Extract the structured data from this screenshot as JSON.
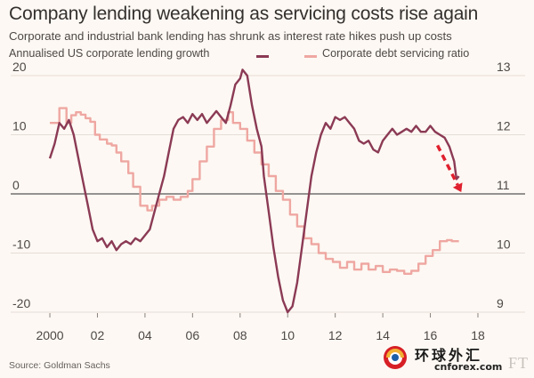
{
  "header": {
    "title": "Company lending weakening as servicing costs rise again",
    "subtitle": "Corporate and industrial bank lending has shrunk as interest rate hikes push up costs"
  },
  "footer": {
    "source": "Source: Goldman Sachs",
    "brand": "FT"
  },
  "watermark": {
    "cn_text": "环球外汇",
    "en_text": "cnforex.com"
  },
  "colors": {
    "background": "#fdf8f3",
    "lending": "#8b3a55",
    "debt_ratio": "#efa7a2",
    "arrow": "#e0202e",
    "zero_line": "#555555",
    "grid": "#e6ddd6"
  },
  "chart_data": {
    "type": "line",
    "title": "Company lending weakening as servicing costs rise again",
    "subtitle": "Corporate and industrial bank lending has shrunk as interest rate hikes push up costs",
    "x_ticks": [
      "2000",
      "02",
      "04",
      "06",
      "08",
      "10",
      "12",
      "14",
      "16",
      "18"
    ],
    "xlim": [
      1999.4,
      2018.3
    ],
    "y_left": {
      "ticks": [
        20,
        10,
        0,
        -10,
        -20
      ],
      "ylim": [
        -20,
        20
      ]
    },
    "y_right": {
      "ticks": [
        13,
        12,
        11,
        10,
        9
      ],
      "ylim": [
        9,
        13
      ]
    },
    "grid": true,
    "legend_position": "top",
    "series": [
      {
        "name": "Annualised US corporate lending growth",
        "axis": "left",
        "color": "#8b3a55",
        "points": [
          [
            2000.0,
            6.0
          ],
          [
            2000.2,
            8.5
          ],
          [
            2000.4,
            12.0
          ],
          [
            2000.6,
            11.0
          ],
          [
            2000.8,
            12.5
          ],
          [
            2001.0,
            10.0
          ],
          [
            2001.2,
            6.0
          ],
          [
            2001.4,
            2.0
          ],
          [
            2001.6,
            -2.0
          ],
          [
            2001.8,
            -6.0
          ],
          [
            2002.0,
            -8.0
          ],
          [
            2002.2,
            -7.5
          ],
          [
            2002.4,
            -9.0
          ],
          [
            2002.6,
            -8.0
          ],
          [
            2002.8,
            -9.5
          ],
          [
            2003.0,
            -8.5
          ],
          [
            2003.2,
            -8.0
          ],
          [
            2003.4,
            -8.5
          ],
          [
            2003.6,
            -7.5
          ],
          [
            2003.8,
            -8.0
          ],
          [
            2004.0,
            -7.0
          ],
          [
            2004.2,
            -6.0
          ],
          [
            2004.4,
            -3.0
          ],
          [
            2004.6,
            0.0
          ],
          [
            2004.8,
            3.0
          ],
          [
            2005.0,
            7.0
          ],
          [
            2005.2,
            11.0
          ],
          [
            2005.4,
            12.5
          ],
          [
            2005.6,
            13.0
          ],
          [
            2005.8,
            12.0
          ],
          [
            2006.0,
            13.5
          ],
          [
            2006.2,
            12.5
          ],
          [
            2006.4,
            13.5
          ],
          [
            2006.6,
            12.0
          ],
          [
            2006.8,
            13.0
          ],
          [
            2007.0,
            14.0
          ],
          [
            2007.2,
            13.0
          ],
          [
            2007.4,
            12.0
          ],
          [
            2007.6,
            15.0
          ],
          [
            2007.8,
            18.5
          ],
          [
            2008.0,
            19.5
          ],
          [
            2008.1,
            21.0
          ],
          [
            2008.3,
            20.0
          ],
          [
            2008.5,
            15.0
          ],
          [
            2008.7,
            11.0
          ],
          [
            2008.9,
            8.0
          ],
          [
            2009.0,
            3.0
          ],
          [
            2009.2,
            -3.0
          ],
          [
            2009.4,
            -9.0
          ],
          [
            2009.6,
            -14.0
          ],
          [
            2009.8,
            -18.0
          ],
          [
            2010.0,
            -20.0
          ],
          [
            2010.2,
            -19.0
          ],
          [
            2010.4,
            -15.0
          ],
          [
            2010.6,
            -9.0
          ],
          [
            2010.8,
            -3.0
          ],
          [
            2011.0,
            3.0
          ],
          [
            2011.2,
            7.0
          ],
          [
            2011.4,
            10.0
          ],
          [
            2011.6,
            12.0
          ],
          [
            2011.8,
            11.0
          ],
          [
            2012.0,
            13.0
          ],
          [
            2012.2,
            12.5
          ],
          [
            2012.4,
            13.0
          ],
          [
            2012.6,
            12.0
          ],
          [
            2012.8,
            11.0
          ],
          [
            2013.0,
            9.0
          ],
          [
            2013.2,
            8.5
          ],
          [
            2013.4,
            9.0
          ],
          [
            2013.6,
            7.5
          ],
          [
            2013.8,
            7.0
          ],
          [
            2014.0,
            9.0
          ],
          [
            2014.2,
            10.0
          ],
          [
            2014.4,
            11.0
          ],
          [
            2014.6,
            10.0
          ],
          [
            2014.8,
            10.5
          ],
          [
            2015.0,
            11.0
          ],
          [
            2015.2,
            10.5
          ],
          [
            2015.4,
            11.5
          ],
          [
            2015.6,
            10.5
          ],
          [
            2015.8,
            10.5
          ],
          [
            2016.0,
            11.5
          ],
          [
            2016.2,
            10.5
          ],
          [
            2016.4,
            10.0
          ],
          [
            2016.6,
            9.5
          ],
          [
            2016.8,
            8.0
          ],
          [
            2017.0,
            5.5
          ],
          [
            2017.1,
            2.5
          ],
          [
            2017.2,
            3.0
          ]
        ]
      },
      {
        "name": "Corporate debt servicing ratio",
        "axis": "right",
        "color": "#efa7a2",
        "points": [
          [
            2000.0,
            12.2
          ],
          [
            2000.4,
            12.2
          ],
          [
            2000.4,
            12.45
          ],
          [
            2000.7,
            12.45
          ],
          [
            2000.7,
            12.2
          ],
          [
            2000.9,
            12.2
          ],
          [
            2000.9,
            12.33
          ],
          [
            2001.1,
            12.33
          ],
          [
            2001.1,
            12.38
          ],
          [
            2001.3,
            12.38
          ],
          [
            2001.3,
            12.34
          ],
          [
            2001.5,
            12.34
          ],
          [
            2001.5,
            12.28
          ],
          [
            2001.7,
            12.28
          ],
          [
            2001.7,
            12.22
          ],
          [
            2001.9,
            12.22
          ],
          [
            2001.9,
            12.0
          ],
          [
            2002.1,
            12.0
          ],
          [
            2002.1,
            11.92
          ],
          [
            2002.4,
            11.92
          ],
          [
            2002.4,
            11.85
          ],
          [
            2002.6,
            11.85
          ],
          [
            2002.6,
            11.82
          ],
          [
            2002.8,
            11.82
          ],
          [
            2002.8,
            11.7
          ],
          [
            2003.0,
            11.7
          ],
          [
            2003.0,
            11.55
          ],
          [
            2003.3,
            11.55
          ],
          [
            2003.3,
            11.35
          ],
          [
            2003.5,
            11.35
          ],
          [
            2003.5,
            11.12
          ],
          [
            2003.8,
            11.12
          ],
          [
            2003.8,
            10.8
          ],
          [
            2004.1,
            10.8
          ],
          [
            2004.1,
            10.72
          ],
          [
            2004.3,
            10.72
          ],
          [
            2004.3,
            10.8
          ],
          [
            2004.6,
            10.8
          ],
          [
            2004.6,
            10.9
          ],
          [
            2004.9,
            10.9
          ],
          [
            2004.9,
            10.95
          ],
          [
            2005.2,
            10.95
          ],
          [
            2005.2,
            10.9
          ],
          [
            2005.5,
            10.9
          ],
          [
            2005.5,
            10.95
          ],
          [
            2005.8,
            10.95
          ],
          [
            2005.8,
            11.05
          ],
          [
            2006.0,
            11.05
          ],
          [
            2006.0,
            11.25
          ],
          [
            2006.3,
            11.25
          ],
          [
            2006.3,
            11.55
          ],
          [
            2006.6,
            11.55
          ],
          [
            2006.6,
            11.8
          ],
          [
            2006.9,
            11.8
          ],
          [
            2006.9,
            12.1
          ],
          [
            2007.2,
            12.1
          ],
          [
            2007.2,
            12.25
          ],
          [
            2007.5,
            12.25
          ],
          [
            2007.5,
            12.38
          ],
          [
            2007.7,
            12.38
          ],
          [
            2007.7,
            12.2
          ],
          [
            2008.0,
            12.2
          ],
          [
            2008.0,
            12.1
          ],
          [
            2008.3,
            12.1
          ],
          [
            2008.3,
            11.9
          ],
          [
            2008.6,
            11.9
          ],
          [
            2008.6,
            11.7
          ],
          [
            2008.9,
            11.7
          ],
          [
            2008.9,
            11.5
          ],
          [
            2009.2,
            11.5
          ],
          [
            2009.2,
            11.3
          ],
          [
            2009.5,
            11.3
          ],
          [
            2009.5,
            11.05
          ],
          [
            2009.8,
            11.05
          ],
          [
            2009.8,
            10.9
          ],
          [
            2010.1,
            10.9
          ],
          [
            2010.1,
            10.65
          ],
          [
            2010.4,
            10.65
          ],
          [
            2010.4,
            10.45
          ],
          [
            2010.7,
            10.45
          ],
          [
            2010.7,
            10.25
          ],
          [
            2011.0,
            10.25
          ],
          [
            2011.0,
            10.15
          ],
          [
            2011.3,
            10.15
          ],
          [
            2011.3,
            10.0
          ],
          [
            2011.6,
            10.0
          ],
          [
            2011.6,
            9.9
          ],
          [
            2011.9,
            9.9
          ],
          [
            2011.9,
            9.85
          ],
          [
            2012.2,
            9.85
          ],
          [
            2012.2,
            9.75
          ],
          [
            2012.5,
            9.75
          ],
          [
            2012.5,
            9.85
          ],
          [
            2012.8,
            9.85
          ],
          [
            2012.8,
            9.72
          ],
          [
            2013.1,
            9.72
          ],
          [
            2013.1,
            9.82
          ],
          [
            2013.4,
            9.82
          ],
          [
            2013.4,
            9.72
          ],
          [
            2013.7,
            9.72
          ],
          [
            2013.7,
            9.78
          ],
          [
            2014.0,
            9.78
          ],
          [
            2014.0,
            9.68
          ],
          [
            2014.3,
            9.68
          ],
          [
            2014.3,
            9.72
          ],
          [
            2014.6,
            9.72
          ],
          [
            2014.6,
            9.7
          ],
          [
            2014.9,
            9.7
          ],
          [
            2014.9,
            9.65
          ],
          [
            2015.2,
            9.65
          ],
          [
            2015.2,
            9.7
          ],
          [
            2015.5,
            9.7
          ],
          [
            2015.5,
            9.82
          ],
          [
            2015.8,
            9.82
          ],
          [
            2015.8,
            9.95
          ],
          [
            2016.1,
            9.95
          ],
          [
            2016.1,
            10.05
          ],
          [
            2016.4,
            10.05
          ],
          [
            2016.4,
            10.2
          ],
          [
            2016.7,
            10.2
          ],
          [
            2016.7,
            10.22
          ],
          [
            2016.9,
            10.22
          ],
          [
            2016.9,
            10.2
          ],
          [
            2017.2,
            10.2
          ]
        ]
      }
    ],
    "annotation": {
      "type": "arrow",
      "style": "dashed",
      "color": "#e0202e",
      "from": [
        2016.3,
        8.2
      ],
      "to": [
        2017.3,
        0.3
      ]
    }
  }
}
